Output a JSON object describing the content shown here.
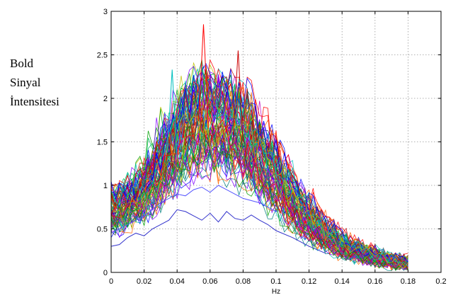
{
  "chart_data": {
    "type": "line",
    "title": "",
    "xlabel": "Hz",
    "ylabel_lines": [
      "Bold",
      "Sinyal",
      "İntensitesi"
    ],
    "xlim": [
      0,
      0.2
    ],
    "ylim": [
      0,
      3
    ],
    "x_ticks": [
      "0",
      "0.02",
      "0.04",
      "0.06",
      "0.08",
      "0.1",
      "0.12",
      "0.14",
      "0.16",
      "0.18",
      "0.2"
    ],
    "y_ticks": [
      "0",
      "0.5",
      "1",
      "1.5",
      "2",
      "2.5",
      "3"
    ],
    "grid": true,
    "grid_style": "dotted",
    "legend": "none",
    "x_max_data": 0.182,
    "envelope": {
      "x": [
        0,
        0.01,
        0.02,
        0.03,
        0.04,
        0.05,
        0.055,
        0.06,
        0.07,
        0.08,
        0.09,
        0.1,
        0.11,
        0.12,
        0.13,
        0.14,
        0.15,
        0.16,
        0.17,
        0.182
      ],
      "y": [
        0.7,
        0.75,
        0.9,
        1.2,
        1.45,
        1.65,
        1.75,
        1.7,
        1.65,
        1.55,
        1.3,
        1.05,
        0.8,
        0.58,
        0.42,
        0.3,
        0.22,
        0.17,
        0.13,
        0.1
      ]
    },
    "series_count": 90,
    "peak_annotations": [
      {
        "x": 0.056,
        "y": 2.85
      },
      {
        "x": 0.077,
        "y": 2.55
      },
      {
        "x": 0.037,
        "y": 2.33
      }
    ],
    "low_series": [
      {
        "color": "#3333cc",
        "x": [
          0,
          0.005,
          0.01,
          0.015,
          0.02,
          0.025,
          0.03,
          0.035,
          0.04,
          0.045,
          0.05,
          0.055,
          0.06,
          0.065,
          0.07,
          0.075,
          0.08,
          0.085,
          0.09,
          0.095,
          0.1,
          0.11,
          0.12,
          0.13
        ],
        "y": [
          0.3,
          0.32,
          0.4,
          0.45,
          0.42,
          0.5,
          0.55,
          0.6,
          0.72,
          0.7,
          0.65,
          0.6,
          0.68,
          0.58,
          0.7,
          0.62,
          0.6,
          0.66,
          0.6,
          0.55,
          0.48,
          0.4,
          0.3,
          0.22
        ]
      },
      {
        "color": "#5555ff",
        "x": [
          0,
          0.005,
          0.01,
          0.015,
          0.02,
          0.025,
          0.03,
          0.035,
          0.04,
          0.045,
          0.05,
          0.055,
          0.06,
          0.065,
          0.07,
          0.075,
          0.08,
          0.09,
          0.1
        ],
        "y": [
          0.45,
          0.5,
          0.55,
          0.6,
          0.65,
          0.72,
          0.8,
          0.85,
          0.9,
          0.88,
          0.95,
          0.98,
          0.92,
          1.0,
          0.95,
          0.9,
          0.85,
          0.8,
          0.7
        ]
      }
    ],
    "colors": [
      "#ff0000",
      "#00a000",
      "#0000ff",
      "#00bfbf",
      "#bf00bf",
      "#bfbf00",
      "#404040",
      "#ff6600",
      "#8000ff",
      "#008080",
      "#c00000",
      "#00c060"
    ]
  }
}
